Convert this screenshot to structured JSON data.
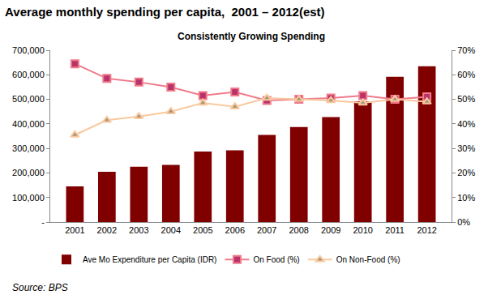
{
  "chart_data": {
    "type": "bar",
    "title": "Average monthly spending per capita,  2001 – 2012(est)",
    "subtitle": "Consistently Growing Spending",
    "source": "Source: BPS",
    "categories": [
      "2001",
      "2002",
      "2003",
      "2004",
      "2005",
      "2006",
      "2007",
      "2008",
      "2009",
      "2010",
      "2011",
      "2012"
    ],
    "series": [
      {
        "name": "Ave Mo Expenditure per Capita (IDR)",
        "type": "bar",
        "color": "#800000",
        "values": [
          145000,
          205000,
          225000,
          233000,
          287000,
          292000,
          355000,
          387000,
          428000,
          492000,
          592000,
          635000
        ]
      },
      {
        "name": "On Food (%)",
        "type": "line",
        "axis": "y2",
        "color": "#f07a8a",
        "marker": "square",
        "values": [
          64.5,
          58.5,
          57,
          55,
          51.5,
          53,
          49.5,
          50,
          50.5,
          51.5,
          50,
          51
        ]
      },
      {
        "name": "On Non-Food (%)",
        "type": "line",
        "axis": "y2",
        "color": "#f9c99e",
        "marker": "triangle-up",
        "values": [
          35.5,
          41.5,
          43,
          45,
          48.5,
          47,
          50.5,
          50,
          49.5,
          48.5,
          50,
          49
        ]
      }
    ],
    "ylim": [
      0,
      700000
    ],
    "yticks": [
      {
        "value": 0,
        "label": "-"
      },
      {
        "value": 100000,
        "label": "100,000"
      },
      {
        "value": 200000,
        "label": "200,000"
      },
      {
        "value": 300000,
        "label": "300,000"
      },
      {
        "value": 400000,
        "label": "400,000"
      },
      {
        "value": 500000,
        "label": "500,000"
      },
      {
        "value": 600000,
        "label": "600,000"
      },
      {
        "value": 700000,
        "label": "700,000"
      }
    ],
    "y2lim": [
      0,
      70
    ],
    "y2ticks": [
      {
        "value": 0,
        "label": "0%"
      },
      {
        "value": 10,
        "label": "10%"
      },
      {
        "value": 20,
        "label": "20%"
      },
      {
        "value": 30,
        "label": "30%"
      },
      {
        "value": 40,
        "label": "40%"
      },
      {
        "value": 50,
        "label": "50%"
      },
      {
        "value": 60,
        "label": "60%"
      },
      {
        "value": 70,
        "label": "70%"
      }
    ],
    "grid": false,
    "legend": "bottom"
  }
}
